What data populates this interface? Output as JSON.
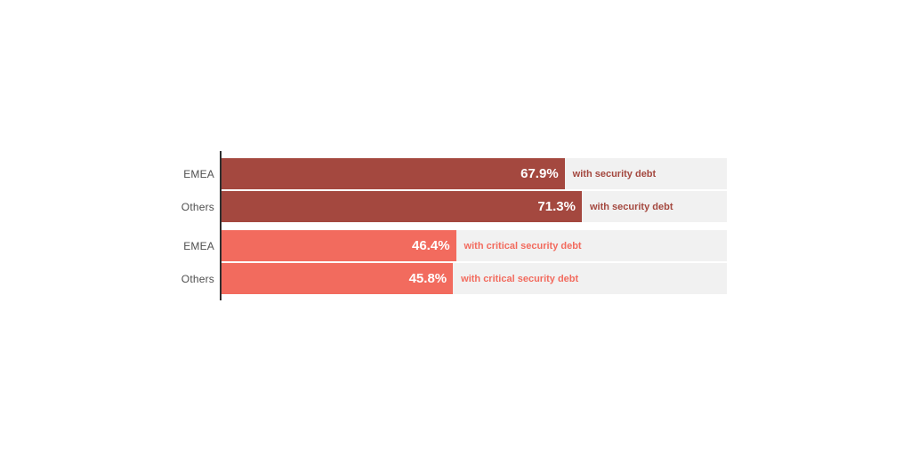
{
  "canvas": {
    "background": "#ffffff"
  },
  "colors": {
    "security_debt_bar": "#a4483f",
    "critical_security_debt_bar": "#f26b5e",
    "track_background": "#f1f1f1",
    "axis_line": "#2f2f2f",
    "category_label": "#4f4f4f",
    "value_label": "#ffffff"
  },
  "chart_data": {
    "type": "bar",
    "orientation": "horizontal",
    "title": "",
    "xlabel": "",
    "ylabel": "",
    "xlim": [
      0,
      100
    ],
    "unit": "%",
    "grid": false,
    "legend": "none",
    "categories": [
      "EMEA",
      "Others",
      "EMEA",
      "Others"
    ],
    "groups": [
      {
        "name": "with security debt",
        "color": "#a4483f",
        "bars": [
          {
            "category": "EMEA",
            "value": 67.9,
            "value_label": "67.9%",
            "annotation": "with security debt"
          },
          {
            "category": "Others",
            "value": 71.3,
            "value_label": "71.3%",
            "annotation": "with security debt"
          }
        ]
      },
      {
        "name": "with critical security debt",
        "color": "#f26b5e",
        "bars": [
          {
            "category": "EMEA",
            "value": 46.4,
            "value_label": "46.4%",
            "annotation": "with critical security debt"
          },
          {
            "category": "Others",
            "value": 45.8,
            "value_label": "45.8%",
            "annotation": "with critical security debt"
          }
        ]
      }
    ]
  }
}
